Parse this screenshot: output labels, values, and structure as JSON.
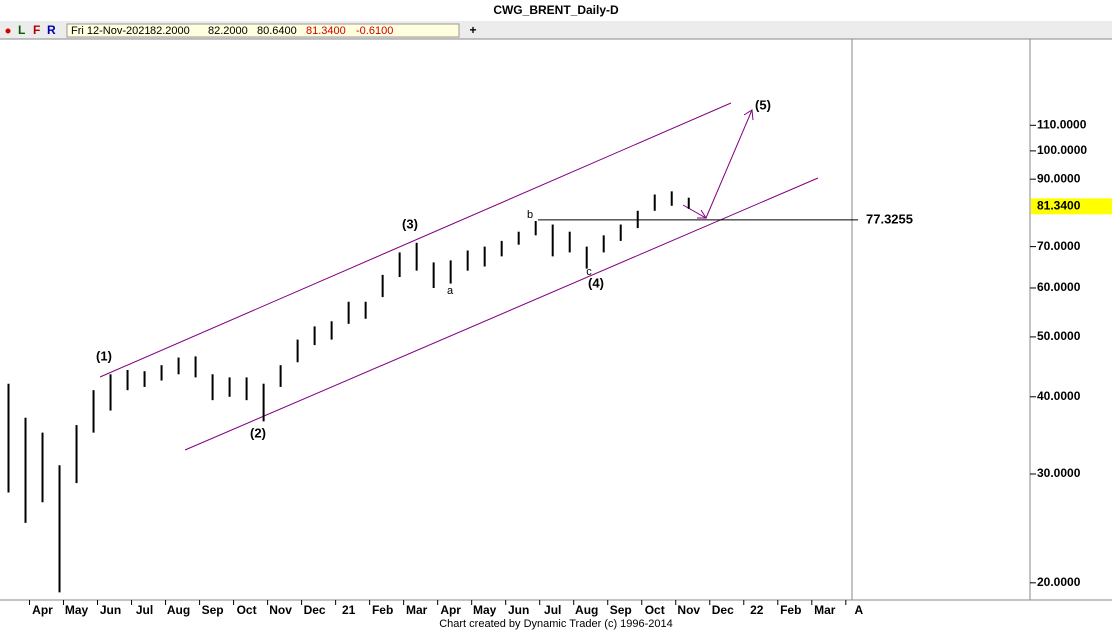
{
  "header": {
    "title": "CWG_BRENT_Daily-D",
    "buttons": [
      "L",
      "F",
      "R"
    ],
    "add": "+",
    "info": [
      "Fri 12-Nov-2021",
      "82.2000",
      "82.2000",
      "80.6400",
      "81.3400",
      "-0.6100"
    ]
  },
  "chart_data": {
    "type": "hilo",
    "color": "#000000",
    "x": [
      -1.0,
      -0.5,
      0,
      0.5,
      1.0,
      1.5,
      2.0,
      2.5,
      3.0,
      3.5,
      4.0,
      4.5,
      5.0,
      5.5,
      6.0,
      6.5,
      7.0,
      7.5,
      8.0,
      8.5,
      9.0,
      9.5,
      10.0,
      10.5,
      11.0,
      11.5,
      12.0,
      12.5,
      13.0,
      13.5,
      14.0,
      14.5,
      15.0,
      15.5,
      16.0,
      16.5,
      17.0,
      17.5,
      18.0,
      18.5,
      19.0
    ],
    "high": [
      42,
      37,
      35,
      31,
      36,
      41,
      43.5,
      44.2,
      44,
      45,
      46.3,
      46.5,
      43.5,
      43,
      43,
      42,
      45,
      49.5,
      52,
      53,
      57,
      57,
      63,
      68.5,
      71,
      66,
      66.5,
      69,
      70,
      71.5,
      74,
      77,
      76,
      74,
      70,
      73,
      76,
      80,
      85,
      86,
      84
    ],
    "low": [
      28,
      25,
      27,
      19.3,
      29,
      35,
      38,
      41,
      41.5,
      42.5,
      43.5,
      43,
      39.5,
      40,
      39.5,
      36.5,
      41.5,
      45.5,
      48.5,
      49.5,
      52.5,
      53.5,
      58,
      62.5,
      64,
      60,
      61,
      64,
      65,
      67.5,
      70.5,
      73,
      67.5,
      68.5,
      64.5,
      68.5,
      71.5,
      75,
      80,
      81.5,
      80.6
    ],
    "xlim": [
      -1.25,
      23.8
    ],
    "xticks": [
      {
        "value": 0,
        "label": "Apr"
      },
      {
        "value": 1,
        "label": "May"
      },
      {
        "value": 2,
        "label": "Jun"
      },
      {
        "value": 3,
        "label": "Jul"
      },
      {
        "value": 4,
        "label": "Aug"
      },
      {
        "value": 5,
        "label": "Sep"
      },
      {
        "value": 6,
        "label": "Oct"
      },
      {
        "value": 7,
        "label": "Nov"
      },
      {
        "value": 8,
        "label": "Dec"
      },
      {
        "value": 9,
        "label": "21"
      },
      {
        "value": 10,
        "label": "Feb"
      },
      {
        "value": 11,
        "label": "Mar"
      },
      {
        "value": 12,
        "label": "Apr"
      },
      {
        "value": 13,
        "label": "May"
      },
      {
        "value": 14,
        "label": "Jun"
      },
      {
        "value": 15,
        "label": "Jul"
      },
      {
        "value": 16,
        "label": "Aug"
      },
      {
        "value": 17,
        "label": "Sep"
      },
      {
        "value": 18,
        "label": "Oct"
      },
      {
        "value": 19,
        "label": "Nov"
      },
      {
        "value": 20,
        "label": "Dec"
      },
      {
        "value": 21,
        "label": "22"
      },
      {
        "value": 22,
        "label": "Feb"
      },
      {
        "value": 23,
        "label": "Mar"
      },
      {
        "value": 24,
        "label": "A"
      }
    ],
    "log_y": true,
    "ylim": [
      18.9,
      154
    ],
    "yticks": [
      {
        "value": 20,
        "label": "20.0000"
      },
      {
        "value": 30,
        "label": "30.0000"
      },
      {
        "value": 40,
        "label": "40.0000"
      },
      {
        "value": 50,
        "label": "50.0000"
      },
      {
        "value": 60,
        "label": "60.0000"
      },
      {
        "value": 70,
        "label": "70.0000"
      },
      {
        "value": 90,
        "label": "90.0000"
      },
      {
        "value": 100,
        "label": "100.0000"
      },
      {
        "value": 110,
        "label": "110.0000"
      }
    ],
    "level": 77.3255,
    "last_price": {
      "value": 81.34,
      "label": "81.3400"
    },
    "annotations": [
      "(1)",
      "(2)",
      "(3)",
      "(4)",
      "(5)",
      "a",
      "b",
      "c"
    ]
  },
  "footer": "Chart created by Dynamic Trader  (c) 1996-2014"
}
